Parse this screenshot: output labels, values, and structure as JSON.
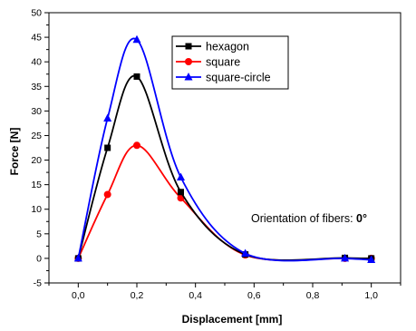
{
  "chart_data": {
    "type": "line",
    "title": "",
    "xlabel": "Displacement [mm]",
    "ylabel": "Force [N]",
    "xlim": [
      -0.1,
      1.1
    ],
    "ylim": [
      -5,
      50
    ],
    "x_ticks": [
      "0,0",
      "0,2",
      "0,4",
      "0,6",
      "0,8",
      "1,0"
    ],
    "x_tick_values": [
      0.0,
      0.2,
      0.4,
      0.6,
      0.8,
      1.0
    ],
    "y_ticks": [
      "-5",
      "0",
      "5",
      "10",
      "15",
      "20",
      "25",
      "30",
      "35",
      "40",
      "45",
      "50"
    ],
    "y_tick_values": [
      -5,
      0,
      5,
      10,
      15,
      20,
      25,
      30,
      35,
      40,
      45,
      50
    ],
    "legend_position": "top-right",
    "annotation": {
      "prefix": "Orientation of fibers: ",
      "bold": "0°"
    },
    "series": [
      {
        "name": "hexagon",
        "color": "#000000",
        "marker": "square",
        "x": [
          0.0,
          0.1,
          0.2,
          0.35,
          0.57,
          0.91,
          1.0
        ],
        "y": [
          0.0,
          22.5,
          37.0,
          13.5,
          0.8,
          0.1,
          0.0
        ]
      },
      {
        "name": "square",
        "color": "#ff0000",
        "marker": "circle",
        "x": [
          0.0,
          0.1,
          0.2,
          0.35,
          0.57,
          0.91,
          1.0
        ],
        "y": [
          0.0,
          13.0,
          23.0,
          12.3,
          0.7,
          0.0,
          0.0
        ]
      },
      {
        "name": "square-circle",
        "color": "#0000ff",
        "marker": "triangle",
        "x": [
          0.0,
          0.1,
          0.2,
          0.35,
          0.57,
          0.91,
          1.0
        ],
        "y": [
          0.0,
          28.5,
          44.5,
          16.5,
          1.0,
          0.0,
          -0.3
        ]
      }
    ]
  }
}
